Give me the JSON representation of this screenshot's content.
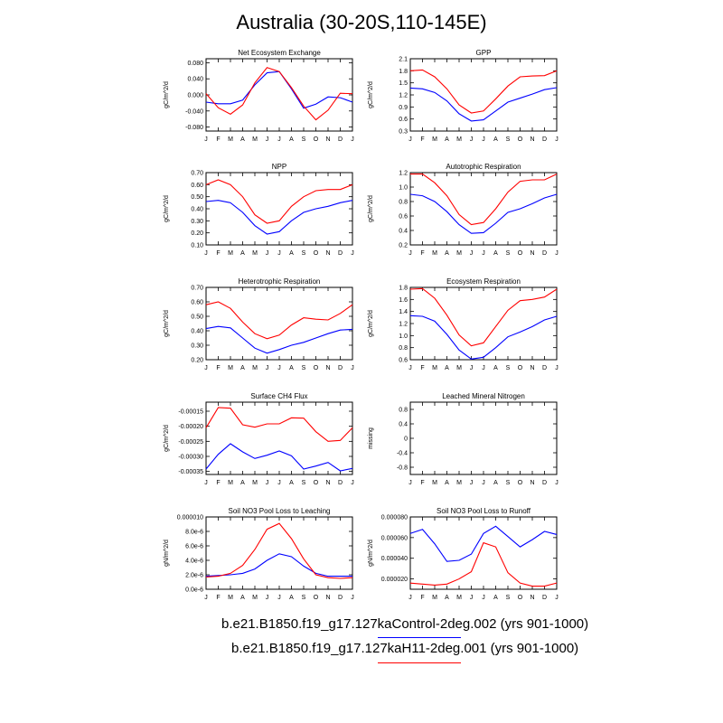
{
  "figure": {
    "title": "Australia (30-20S,110-145E)",
    "legend": [
      {
        "label": "b.e21.B1850.f19_g17.127kaControl-2deg.002 (yrs 901-1000)",
        "color": "#0000ff"
      },
      {
        "label": "b.e21.B1850.f19_g17.127kaH11-2deg.001 (yrs 901-1000)",
        "color": "#ff0000"
      }
    ]
  },
  "chart_data": [
    {
      "type": "line",
      "title": "Net Ecosystem Exchange",
      "ylabel": "gC/m^2/d",
      "categories": [
        "J",
        "F",
        "M",
        "A",
        "M",
        "J",
        "J",
        "A",
        "S",
        "O",
        "N",
        "D",
        "J"
      ],
      "ylim": [
        -0.09,
        0.09
      ],
      "yticks": [
        -0.08,
        -0.04,
        0.0,
        0.04,
        0.08
      ],
      "ytick_labels": [
        "-0.080",
        "-0.040",
        "0.000",
        "0.040",
        "0.080"
      ],
      "series": [
        {
          "color": "#0000ff",
          "values": [
            -0.018,
            -0.022,
            -0.022,
            -0.013,
            0.025,
            0.055,
            0.058,
            0.015,
            -0.033,
            -0.023,
            -0.005,
            -0.007,
            -0.018
          ]
        },
        {
          "color": "#ff0000",
          "values": [
            0.003,
            -0.032,
            -0.048,
            -0.025,
            0.03,
            0.068,
            0.058,
            0.018,
            -0.028,
            -0.062,
            -0.038,
            0.004,
            0.003
          ]
        }
      ]
    },
    {
      "type": "line",
      "title": "GPP",
      "ylabel": "gC/m^2/d",
      "categories": [
        "J",
        "F",
        "M",
        "A",
        "M",
        "J",
        "J",
        "A",
        "S",
        "O",
        "N",
        "D",
        "J"
      ],
      "ylim": [
        0.3,
        2.1
      ],
      "yticks": [
        0.3,
        0.6,
        0.9,
        1.2,
        1.5,
        1.8,
        2.1
      ],
      "ytick_labels": [
        "0.3",
        "0.6",
        "0.9",
        "1.2",
        "1.5",
        "1.8",
        "2.1"
      ],
      "series": [
        {
          "color": "#0000ff",
          "values": [
            1.37,
            1.35,
            1.26,
            1.05,
            0.73,
            0.55,
            0.58,
            0.8,
            1.02,
            1.12,
            1.22,
            1.33,
            1.38
          ]
        },
        {
          "color": "#ff0000",
          "values": [
            1.8,
            1.82,
            1.65,
            1.35,
            0.95,
            0.75,
            0.8,
            1.1,
            1.42,
            1.65,
            1.67,
            1.68,
            1.8
          ]
        }
      ]
    },
    {
      "type": "line",
      "title": "NPP",
      "ylabel": "gC/m^2/d",
      "categories": [
        "J",
        "F",
        "M",
        "A",
        "M",
        "J",
        "J",
        "A",
        "S",
        "O",
        "N",
        "D",
        "J"
      ],
      "ylim": [
        0.1,
        0.7
      ],
      "yticks": [
        0.1,
        0.2,
        0.3,
        0.4,
        0.5,
        0.6,
        0.7
      ],
      "ytick_labels": [
        "0.10",
        "0.20",
        "0.30",
        "0.40",
        "0.50",
        "0.60",
        "0.70"
      ],
      "series": [
        {
          "color": "#0000ff",
          "values": [
            0.46,
            0.47,
            0.45,
            0.37,
            0.26,
            0.19,
            0.21,
            0.3,
            0.37,
            0.4,
            0.42,
            0.45,
            0.47
          ]
        },
        {
          "color": "#ff0000",
          "values": [
            0.6,
            0.64,
            0.6,
            0.5,
            0.35,
            0.28,
            0.3,
            0.42,
            0.5,
            0.55,
            0.56,
            0.56,
            0.6
          ]
        }
      ]
    },
    {
      "type": "line",
      "title": "Autotrophic Respiration",
      "ylabel": "gC/m^2/d",
      "categories": [
        "J",
        "F",
        "M",
        "A",
        "M",
        "J",
        "J",
        "A",
        "S",
        "O",
        "N",
        "D",
        "J"
      ],
      "ylim": [
        0.2,
        1.2
      ],
      "yticks": [
        0.2,
        0.4,
        0.6,
        0.8,
        1.0,
        1.2
      ],
      "ytick_labels": [
        "0.2",
        "0.4",
        "0.6",
        "0.8",
        "1.0",
        "1.2"
      ],
      "series": [
        {
          "color": "#0000ff",
          "values": [
            0.9,
            0.88,
            0.8,
            0.66,
            0.48,
            0.36,
            0.37,
            0.5,
            0.65,
            0.7,
            0.77,
            0.85,
            0.9
          ]
        },
        {
          "color": "#ff0000",
          "values": [
            1.18,
            1.18,
            1.06,
            0.88,
            0.62,
            0.48,
            0.51,
            0.7,
            0.93,
            1.08,
            1.1,
            1.1,
            1.18
          ]
        }
      ]
    },
    {
      "type": "line",
      "title": "Heterotrophic Respiration",
      "ylabel": "gC/m^2/d",
      "categories": [
        "J",
        "F",
        "M",
        "A",
        "M",
        "J",
        "J",
        "A",
        "S",
        "O",
        "N",
        "D",
        "J"
      ],
      "ylim": [
        0.2,
        0.7
      ],
      "yticks": [
        0.2,
        0.3,
        0.4,
        0.5,
        0.6,
        0.7
      ],
      "ytick_labels": [
        "0.20",
        "0.30",
        "0.40",
        "0.50",
        "0.60",
        "0.70"
      ],
      "series": [
        {
          "color": "#0000ff",
          "values": [
            0.415,
            0.43,
            0.42,
            0.35,
            0.28,
            0.245,
            0.27,
            0.3,
            0.32,
            0.35,
            0.38,
            0.405,
            0.41
          ]
        },
        {
          "color": "#ff0000",
          "values": [
            0.58,
            0.6,
            0.555,
            0.46,
            0.38,
            0.345,
            0.37,
            0.44,
            0.49,
            0.48,
            0.475,
            0.52,
            0.58
          ]
        }
      ]
    },
    {
      "type": "line",
      "title": "Ecosystem Respiration",
      "ylabel": "gC/m^2/d",
      "categories": [
        "J",
        "F",
        "M",
        "A",
        "M",
        "J",
        "J",
        "A",
        "S",
        "O",
        "N",
        "D",
        "J"
      ],
      "ylim": [
        0.6,
        1.8
      ],
      "yticks": [
        0.6,
        0.8,
        1.0,
        1.2,
        1.4,
        1.6,
        1.8
      ],
      "ytick_labels": [
        "0.6",
        "0.8",
        "1.0",
        "1.2",
        "1.4",
        "1.6",
        "1.8"
      ],
      "series": [
        {
          "color": "#0000ff",
          "values": [
            1.33,
            1.32,
            1.24,
            1.02,
            0.76,
            0.61,
            0.64,
            0.8,
            0.98,
            1.06,
            1.15,
            1.26,
            1.32
          ]
        },
        {
          "color": "#ff0000",
          "values": [
            1.77,
            1.78,
            1.62,
            1.34,
            1.01,
            0.83,
            0.88,
            1.15,
            1.42,
            1.58,
            1.6,
            1.64,
            1.77
          ]
        }
      ]
    },
    {
      "type": "line",
      "title": "Surface CH4 Flux",
      "ylabel": "gC/m^2/d",
      "categories": [
        "J",
        "F",
        "M",
        "A",
        "M",
        "J",
        "J",
        "A",
        "S",
        "O",
        "N",
        "D",
        "J"
      ],
      "ylim": [
        -0.00036,
        -0.00012
      ],
      "yticks": [
        -0.00035,
        -0.0003,
        -0.00025,
        -0.0002,
        -0.00015
      ],
      "ytick_labels": [
        "-0.00035",
        "-0.00030",
        "-0.00025",
        "-0.00020",
        "-0.00015"
      ],
      "series": [
        {
          "color": "#0000ff",
          "values": [
            -0.000342,
            -0.000293,
            -0.000258,
            -0.000285,
            -0.000307,
            -0.000296,
            -0.000282,
            -0.000298,
            -0.000342,
            -0.000332,
            -0.00032,
            -0.000348,
            -0.00034
          ]
        },
        {
          "color": "#ff0000",
          "values": [
            -0.000205,
            -0.000138,
            -0.00014,
            -0.000195,
            -0.000203,
            -0.000192,
            -0.000192,
            -0.000172,
            -0.000173,
            -0.000218,
            -0.00025,
            -0.000247,
            -0.000205
          ]
        }
      ]
    },
    {
      "type": "line",
      "title": "Leached Mineral Nitrogen",
      "ylabel": "missing",
      "categories": [
        "J",
        "F",
        "M",
        "A",
        "M",
        "J",
        "J",
        "A",
        "S",
        "O",
        "N",
        "D",
        "J"
      ],
      "ylim": [
        -1.0,
        1.0
      ],
      "yticks": [
        -0.8,
        -0.4,
        0.0,
        0.4,
        0.8
      ],
      "ytick_labels": [
        "-0.8",
        "-0.4",
        "0",
        "0.4",
        "0.8"
      ],
      "series": []
    },
    {
      "type": "line",
      "title": "Soil NO3 Pool Loss to Leaching",
      "ylabel": "gN/m^2/d",
      "categories": [
        "J",
        "F",
        "M",
        "A",
        "M",
        "J",
        "J",
        "A",
        "S",
        "O",
        "N",
        "D",
        "J"
      ],
      "ylim": [
        0.0,
        1e-05
      ],
      "yticks": [
        0.0,
        2e-06,
        4e-06,
        6e-06,
        8e-06,
        1e-05
      ],
      "ytick_labels": [
        "0.0e-6",
        "2.0e-6",
        "4.0e-6",
        "6.0e-6",
        "8.0e-6",
        "0.000010"
      ],
      "series": [
        {
          "color": "#0000ff",
          "values": [
            1.8e-06,
            1.9e-06,
            2e-06,
            2.2e-06,
            2.8e-06,
            4e-06,
            4.9e-06,
            4.5e-06,
            3.2e-06,
            2.2e-06,
            1.8e-06,
            1.8e-06,
            1.8e-06
          ]
        },
        {
          "color": "#ff0000",
          "values": [
            1.7e-06,
            1.8e-06,
            2.2e-06,
            3.3e-06,
            5.5e-06,
            8.3e-06,
            9.1e-06,
            7e-06,
            4.2e-06,
            2e-06,
            1.6e-06,
            1.5e-06,
            1.6e-06
          ]
        }
      ]
    },
    {
      "type": "line",
      "title": "Soil NO3 Pool Loss to Runoff",
      "ylabel": "gN/m^2/d",
      "categories": [
        "J",
        "F",
        "M",
        "A",
        "M",
        "J",
        "J",
        "A",
        "S",
        "O",
        "N",
        "D",
        "J"
      ],
      "ylim": [
        1e-05,
        8e-05
      ],
      "yticks": [
        2e-05,
        4e-05,
        6e-05,
        8e-05
      ],
      "ytick_labels": [
        "0.000020",
        "0.000040",
        "0.000060",
        "0.000080"
      ],
      "series": [
        {
          "color": "#0000ff",
          "values": [
            6.4e-05,
            6.8e-05,
            5.4e-05,
            3.7e-05,
            3.8e-05,
            4.4e-05,
            6.4e-05,
            7.1e-05,
            6.1e-05,
            5.1e-05,
            5.8e-05,
            6.6e-05,
            6.3e-05
          ]
        },
        {
          "color": "#ff0000",
          "values": [
            1.6e-05,
            1.5e-05,
            1.4e-05,
            1.5e-05,
            2e-05,
            2.7e-05,
            5.5e-05,
            5.1e-05,
            2.6e-05,
            1.6e-05,
            1.3e-05,
            1.3e-05,
            1.6e-05
          ]
        }
      ]
    }
  ]
}
